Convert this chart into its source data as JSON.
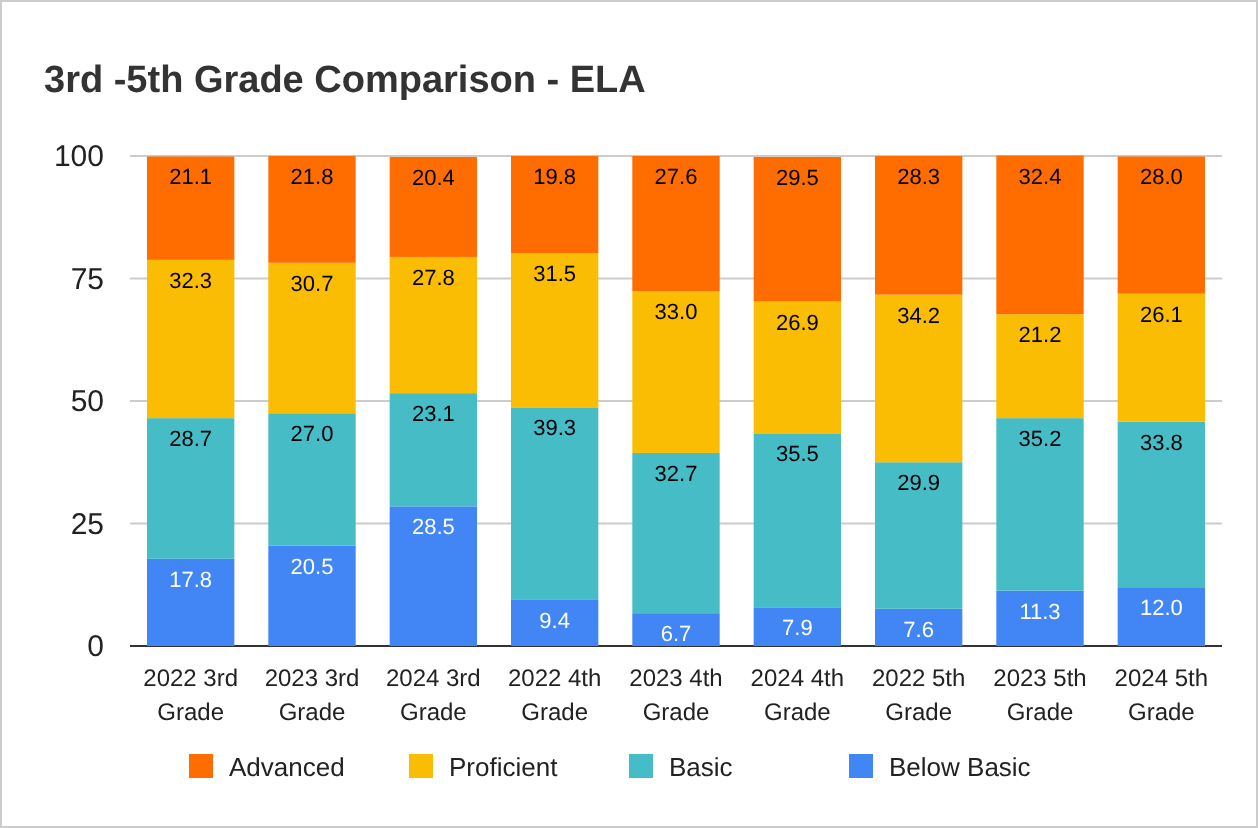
{
  "chart_data": {
    "type": "bar",
    "title": "3rd -5th Grade Comparison - ELA",
    "stacked": true,
    "categories": [
      "2022 3rd Grade",
      "2023 3rd Grade",
      "2024 3rd Grade",
      "2022 4th Grade",
      "2023 4th Grade",
      "2024 4th Grade",
      "2022 5th Grade",
      "2023 5th Grade",
      "2024 5th Grade"
    ],
    "series": [
      {
        "name": "Below Basic",
        "color": "#4285f4",
        "values": [
          17.8,
          20.5,
          28.5,
          9.4,
          6.7,
          7.9,
          7.6,
          11.3,
          12.0
        ],
        "value_labels": [
          "17.8",
          "20.5",
          "28.5",
          "9.4",
          "6.7",
          "7.9",
          "7.6",
          "11.3",
          "12.0"
        ]
      },
      {
        "name": "Basic",
        "color": "#46bdc6",
        "values": [
          28.7,
          27.0,
          23.1,
          39.3,
          32.7,
          35.5,
          29.9,
          35.2,
          33.8
        ],
        "value_labels": [
          "28.7",
          "27.0",
          "23.1",
          "39.3",
          "32.7",
          "35.5",
          "29.9",
          "35.2",
          "33.8"
        ]
      },
      {
        "name": "Proficient",
        "color": "#fbbc04",
        "values": [
          32.3,
          30.7,
          27.8,
          31.5,
          33.0,
          26.9,
          34.2,
          21.2,
          26.1
        ],
        "value_labels": [
          "32.3",
          "30.7",
          "27.8",
          "31.5",
          "33.0",
          "26.9",
          "34.2",
          "21.2",
          "26.1"
        ]
      },
      {
        "name": "Advanced",
        "color": "#ff6d01",
        "values": [
          21.1,
          21.8,
          20.4,
          19.8,
          27.6,
          29.5,
          28.3,
          32.4,
          28.0
        ],
        "value_labels": [
          "21.1",
          "21.8",
          "20.4",
          "19.8",
          "27.6",
          "29.5",
          "28.3",
          "32.4",
          "28.0"
        ]
      }
    ],
    "ylim": [
      0,
      100
    ],
    "yticks": [
      0,
      25,
      50,
      75,
      100
    ],
    "grid": "y",
    "legend": "bottom"
  }
}
